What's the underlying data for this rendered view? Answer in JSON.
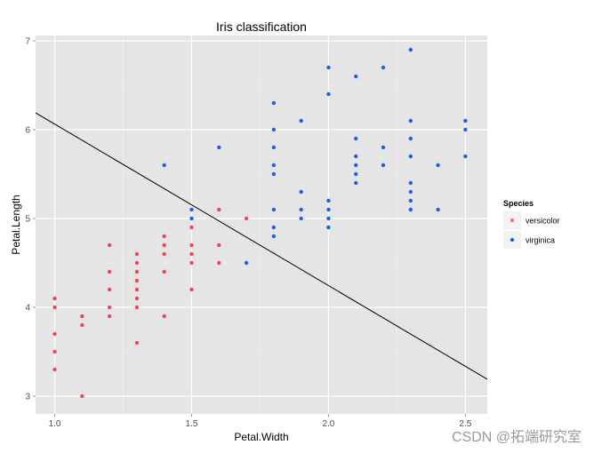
{
  "chart_data": {
    "type": "scatter",
    "title": "Iris classification",
    "xlabel": "Petal.Width",
    "ylabel": "Petal.Length",
    "xlim": [
      0.93,
      2.58
    ],
    "ylim": [
      2.8,
      7.06
    ],
    "x_ticks": [
      {
        "value": 1.0,
        "label": "1.0"
      },
      {
        "value": 1.5,
        "label": "1.5"
      },
      {
        "value": 2.0,
        "label": "2.0"
      },
      {
        "value": 2.5,
        "label": "2.5"
      }
    ],
    "y_ticks": [
      {
        "value": 3,
        "label": "3"
      },
      {
        "value": 4,
        "label": "4"
      },
      {
        "value": 5,
        "label": "5"
      },
      {
        "value": 6,
        "label": "6"
      },
      {
        "value": 7,
        "label": "7"
      }
    ],
    "legend": {
      "title": "Species",
      "placement": "right",
      "entries": [
        {
          "name": "versicolor",
          "color": "#F8766D"
        },
        {
          "name": "virginica",
          "color": "#1F5FE0"
        }
      ]
    },
    "decision_line": {
      "x": [
        0.93,
        2.58
      ],
      "y": [
        6.19,
        3.19
      ]
    },
    "series": [
      {
        "name": "versicolor",
        "color": "#E8495A",
        "points": [
          [
            1.0,
            4.1
          ],
          [
            1.0,
            4.0
          ],
          [
            1.0,
            3.7
          ],
          [
            1.0,
            3.5
          ],
          [
            1.0,
            3.3
          ],
          [
            1.1,
            3.9
          ],
          [
            1.1,
            3.8
          ],
          [
            1.1,
            3.0
          ],
          [
            1.2,
            4.7
          ],
          [
            1.2,
            4.4
          ],
          [
            1.2,
            4.2
          ],
          [
            1.2,
            4.0
          ],
          [
            1.2,
            3.9
          ],
          [
            1.3,
            4.6
          ],
          [
            1.3,
            4.5
          ],
          [
            1.3,
            4.4
          ],
          [
            1.3,
            4.3
          ],
          [
            1.3,
            4.2
          ],
          [
            1.3,
            4.1
          ],
          [
            1.3,
            4.0
          ],
          [
            1.3,
            3.6
          ],
          [
            1.4,
            4.8
          ],
          [
            1.4,
            4.7
          ],
          [
            1.4,
            4.6
          ],
          [
            1.4,
            4.4
          ],
          [
            1.4,
            3.9
          ],
          [
            1.5,
            4.9
          ],
          [
            1.5,
            4.7
          ],
          [
            1.5,
            4.6
          ],
          [
            1.5,
            4.5
          ],
          [
            1.5,
            4.2
          ],
          [
            1.6,
            5.1
          ],
          [
            1.6,
            4.7
          ],
          [
            1.6,
            4.5
          ],
          [
            1.7,
            5.0
          ]
        ]
      },
      {
        "name": "virginica",
        "color": "#1F5FE0",
        "points": [
          [
            1.4,
            5.6
          ],
          [
            1.5,
            5.1
          ],
          [
            1.5,
            5.0
          ],
          [
            1.6,
            5.8
          ],
          [
            1.7,
            4.5
          ],
          [
            1.8,
            6.3
          ],
          [
            1.8,
            6.0
          ],
          [
            1.8,
            5.8
          ],
          [
            1.8,
            5.6
          ],
          [
            1.8,
            5.5
          ],
          [
            1.8,
            5.1
          ],
          [
            1.8,
            4.9
          ],
          [
            1.8,
            4.8
          ],
          [
            1.9,
            6.1
          ],
          [
            1.9,
            5.3
          ],
          [
            1.9,
            5.1
          ],
          [
            1.9,
            5.0
          ],
          [
            2.0,
            6.7
          ],
          [
            2.0,
            6.4
          ],
          [
            2.0,
            5.2
          ],
          [
            2.0,
            5.1
          ],
          [
            2.0,
            5.0
          ],
          [
            2.0,
            4.9
          ],
          [
            2.1,
            6.6
          ],
          [
            2.1,
            5.9
          ],
          [
            2.1,
            5.7
          ],
          [
            2.1,
            5.6
          ],
          [
            2.1,
            5.5
          ],
          [
            2.1,
            5.4
          ],
          [
            2.2,
            6.7
          ],
          [
            2.2,
            5.8
          ],
          [
            2.2,
            5.6
          ],
          [
            2.3,
            6.9
          ],
          [
            2.3,
            6.1
          ],
          [
            2.3,
            5.9
          ],
          [
            2.3,
            5.7
          ],
          [
            2.3,
            5.4
          ],
          [
            2.3,
            5.3
          ],
          [
            2.3,
            5.2
          ],
          [
            2.3,
            5.1
          ],
          [
            2.4,
            5.6
          ],
          [
            2.4,
            5.1
          ],
          [
            2.5,
            6.1
          ],
          [
            2.5,
            6.0
          ],
          [
            2.5,
            5.7
          ]
        ]
      }
    ]
  },
  "watermark": "CSDN @拓端研究室"
}
